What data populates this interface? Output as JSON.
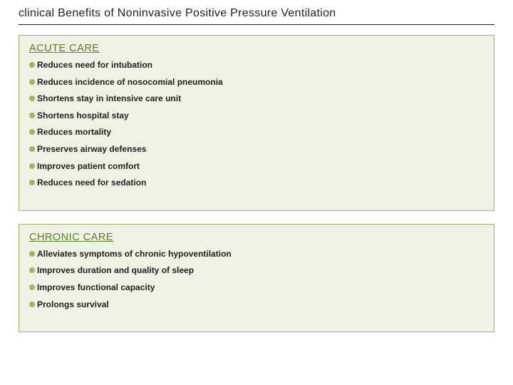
{
  "title": "clinical Benefits of Noninvasive Positive Pressure Ventilation",
  "colors": {
    "panel_bg": "#eef1e4",
    "panel_border": "#9cb36a",
    "bullet": "#9cb36a",
    "heading": "#5e7a2a",
    "text": "#222222",
    "title_underline": "#222222"
  },
  "typography": {
    "title_fontsize": 16,
    "heading_fontsize": 14.5,
    "item_fontsize": 12,
    "item_weight": 700
  },
  "sections": [
    {
      "heading": "ACUTE  CARE",
      "items": [
        "Reduces need for intubation",
        "Reduces incidence of nosocomial pneumonia",
        "Shortens stay in intensive care unit",
        "Shortens hospital stay",
        "Reduces mortality",
        "Preserves airway defenses",
        "Improves patient comfort",
        "Reduces need for sedation"
      ]
    },
    {
      "heading": "CHRONIC CARE",
      "items": [
        "Alleviates symptoms of chronic hypoventilation",
        "Improves duration and quality of sleep",
        "Improves functional capacity",
        "Prolongs survival"
      ]
    }
  ]
}
